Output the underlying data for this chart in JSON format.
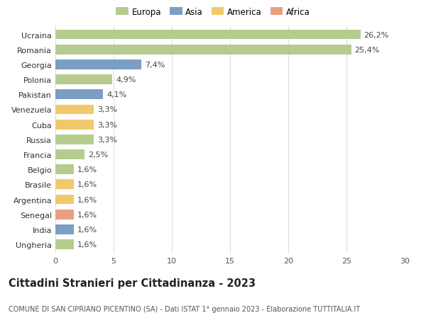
{
  "categories": [
    "Ucraina",
    "Romania",
    "Georgia",
    "Polonia",
    "Pakistan",
    "Venezuela",
    "Cuba",
    "Russia",
    "Francia",
    "Belgio",
    "Brasile",
    "Argentina",
    "Senegal",
    "India",
    "Ungheria"
  ],
  "values": [
    26.2,
    25.4,
    7.4,
    4.9,
    4.1,
    3.3,
    3.3,
    3.3,
    2.5,
    1.6,
    1.6,
    1.6,
    1.6,
    1.6,
    1.6
  ],
  "labels": [
    "26,2%",
    "25,4%",
    "7,4%",
    "4,9%",
    "4,1%",
    "3,3%",
    "3,3%",
    "3,3%",
    "2,5%",
    "1,6%",
    "1,6%",
    "1,6%",
    "1,6%",
    "1,6%",
    "1,6%"
  ],
  "continents": [
    "Europa",
    "Europa",
    "Asia",
    "Europa",
    "Asia",
    "America",
    "America",
    "Europa",
    "Europa",
    "Europa",
    "America",
    "America",
    "Africa",
    "Asia",
    "Europa"
  ],
  "continent_colors": {
    "Europa": "#b5cc8e",
    "Asia": "#7b9ec4",
    "America": "#f0c96b",
    "Africa": "#e8a080"
  },
  "legend_order": [
    "Europa",
    "Asia",
    "America",
    "Africa"
  ],
  "title": "Cittadini Stranieri per Cittadinanza - 2023",
  "subtitle": "COMUNE DI SAN CIPRIANO PICENTINO (SA) - Dati ISTAT 1° gennaio 2023 - Elaborazione TUTTITALIA.IT",
  "xlim": [
    0,
    30
  ],
  "xticks": [
    0,
    5,
    10,
    15,
    20,
    25,
    30
  ],
  "background_color": "#ffffff",
  "grid_color": "#dddddd",
  "bar_height": 0.65,
  "label_fontsize": 8.0,
  "tick_fontsize": 8.0,
  "title_fontsize": 10.5,
  "subtitle_fontsize": 7.0
}
